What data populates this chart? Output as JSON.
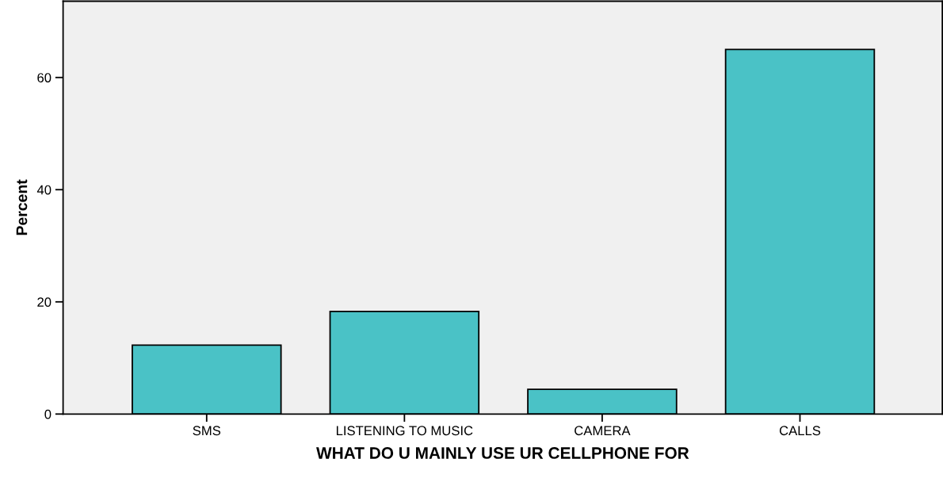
{
  "chart_data": {
    "type": "bar",
    "xlabel": "WHAT DO U MAINLY USE UR CELLPHONE FOR",
    "ylabel": "Percent",
    "categories": [
      "SMS",
      "LISTENING TO MUSIC",
      "CAMERA",
      "CALLS"
    ],
    "values": [
      12.3,
      18.3,
      4.4,
      65.0
    ],
    "color": "#4ac2c6",
    "ylim": [
      0,
      73.6
    ],
    "yticks": [
      0,
      20,
      40,
      60
    ],
    "grid": false
  }
}
